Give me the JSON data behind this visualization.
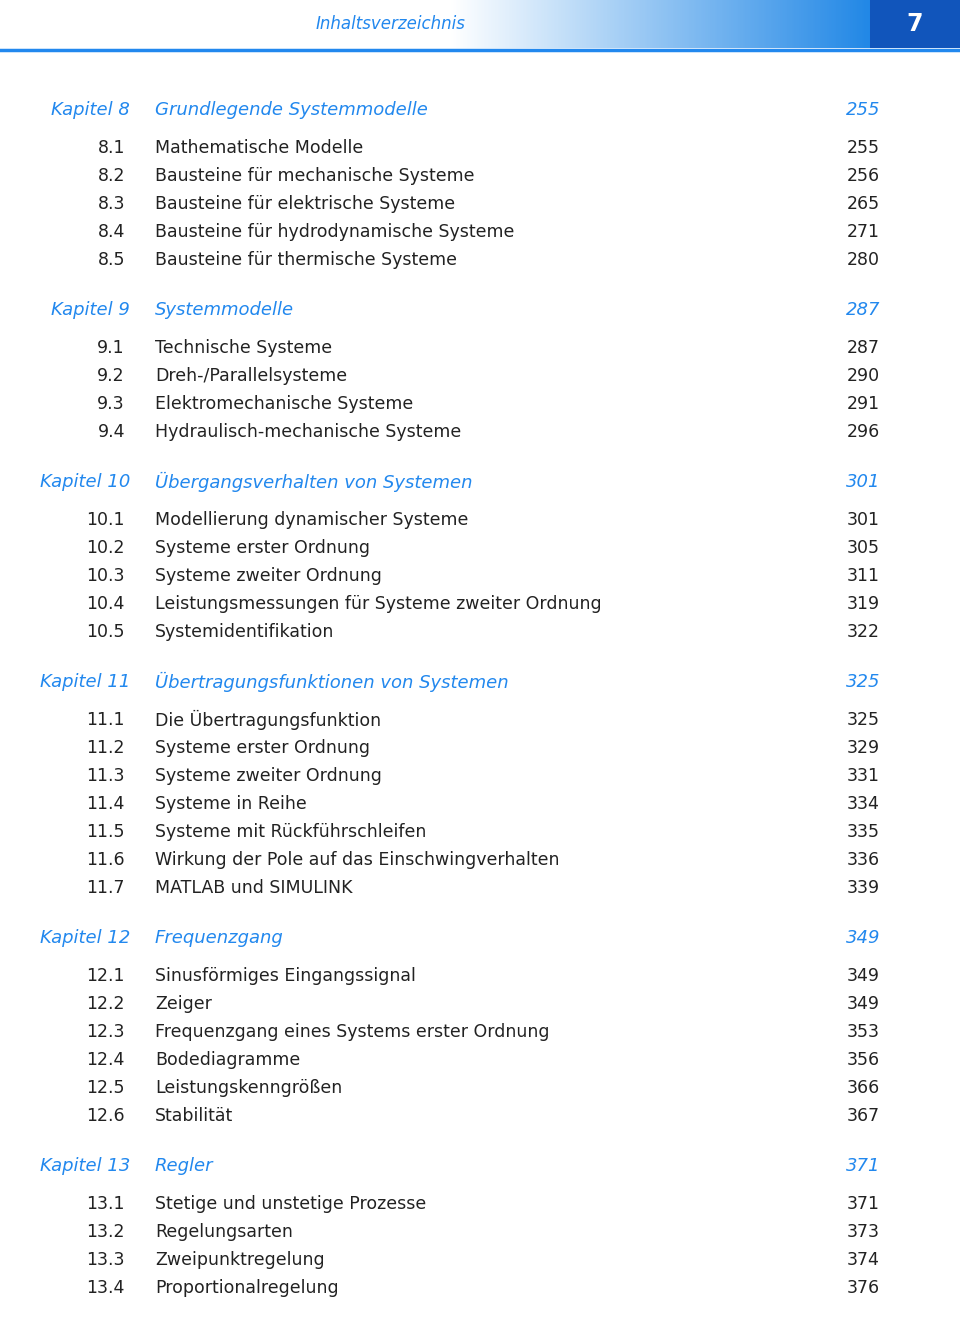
{
  "header_title": "Inhaltsverzeichnis",
  "page_number": "7",
  "blue_color": "#2288EE",
  "text_color": "#222222",
  "bg_color": "#FFFFFF",
  "entries": [
    {
      "type": "chapter",
      "num": "Kapitel 8",
      "title": "Grundlegende Systemmodelle",
      "page": "255"
    },
    {
      "type": "section",
      "num": "8.1",
      "title": "Mathematische Modelle",
      "page": "255"
    },
    {
      "type": "section",
      "num": "8.2",
      "title": "Bausteine für mechanische Systeme",
      "page": "256"
    },
    {
      "type": "section",
      "num": "8.3",
      "title": "Bausteine für elektrische Systeme",
      "page": "265"
    },
    {
      "type": "section",
      "num": "8.4",
      "title": "Bausteine für hydrodynamische Systeme",
      "page": "271"
    },
    {
      "type": "section",
      "num": "8.5",
      "title": "Bausteine für thermische Systeme",
      "page": "280"
    },
    {
      "type": "spacer"
    },
    {
      "type": "chapter",
      "num": "Kapitel 9",
      "title": "Systemmodelle",
      "page": "287"
    },
    {
      "type": "section",
      "num": "9.1",
      "title": "Technische Systeme",
      "page": "287"
    },
    {
      "type": "section",
      "num": "9.2",
      "title": "Dreh-/Parallelsysteme",
      "page": "290"
    },
    {
      "type": "section",
      "num": "9.3",
      "title": "Elektromechanische Systeme",
      "page": "291"
    },
    {
      "type": "section",
      "num": "9.4",
      "title": "Hydraulisch-mechanische Systeme",
      "page": "296"
    },
    {
      "type": "spacer"
    },
    {
      "type": "chapter",
      "num": "Kapitel 10",
      "title": "Übergangsverhalten von Systemen",
      "page": "301"
    },
    {
      "type": "section",
      "num": "10.1",
      "title": "Modellierung dynamischer Systeme",
      "page": "301"
    },
    {
      "type": "section",
      "num": "10.2",
      "title": "Systeme erster Ordnung",
      "page": "305"
    },
    {
      "type": "section",
      "num": "10.3",
      "title": "Systeme zweiter Ordnung",
      "page": "311"
    },
    {
      "type": "section",
      "num": "10.4",
      "title": "Leistungsmessungen für Systeme zweiter Ordnung",
      "page": "319"
    },
    {
      "type": "section",
      "num": "10.5",
      "title": "Systemidentifikation",
      "page": "322"
    },
    {
      "type": "spacer"
    },
    {
      "type": "chapter",
      "num": "Kapitel 11",
      "title": "Übertragungsfunktionen von Systemen",
      "page": "325"
    },
    {
      "type": "section",
      "num": "11.1",
      "title": "Die Übertragungsfunktion",
      "page": "325"
    },
    {
      "type": "section",
      "num": "11.2",
      "title": "Systeme erster Ordnung",
      "page": "329"
    },
    {
      "type": "section",
      "num": "11.3",
      "title": "Systeme zweiter Ordnung",
      "page": "331"
    },
    {
      "type": "section",
      "num": "11.4",
      "title": "Systeme in Reihe",
      "page": "334"
    },
    {
      "type": "section",
      "num": "11.5",
      "title": "Systeme mit Rückführschleifen",
      "page": "335"
    },
    {
      "type": "section",
      "num": "11.6",
      "title": "Wirkung der Pole auf das Einschwingverhalten",
      "page": "336"
    },
    {
      "type": "section",
      "num": "11.7",
      "title": "MATLAB und SIMULINK",
      "page": "339"
    },
    {
      "type": "spacer"
    },
    {
      "type": "chapter",
      "num": "Kapitel 12",
      "title": "Frequenzgang",
      "page": "349"
    },
    {
      "type": "section",
      "num": "12.1",
      "title": "Sinusförmiges Eingangssignal",
      "page": "349"
    },
    {
      "type": "section",
      "num": "12.2",
      "title": "Zeiger",
      "page": "349"
    },
    {
      "type": "section",
      "num": "12.3",
      "title": "Frequenzgang eines Systems erster Ordnung",
      "page": "353"
    },
    {
      "type": "section",
      "num": "12.4",
      "title": "Bodediagramme",
      "page": "356"
    },
    {
      "type": "section",
      "num": "12.5",
      "title": "Leistungskenngrößen",
      "page": "366"
    },
    {
      "type": "section",
      "num": "12.6",
      "title": "Stabilität",
      "page": "367"
    },
    {
      "type": "spacer"
    },
    {
      "type": "chapter",
      "num": "Kapitel 13",
      "title": "Regler",
      "page": "371"
    },
    {
      "type": "section",
      "num": "13.1",
      "title": "Stetige und unstetige Prozesse",
      "page": "371"
    },
    {
      "type": "section",
      "num": "13.2",
      "title": "Regelungsarten",
      "page": "373"
    },
    {
      "type": "section",
      "num": "13.3",
      "title": "Zweipunktregelung",
      "page": "374"
    },
    {
      "type": "section",
      "num": "13.4",
      "title": "Proportionalregelung",
      "page": "376"
    }
  ]
}
